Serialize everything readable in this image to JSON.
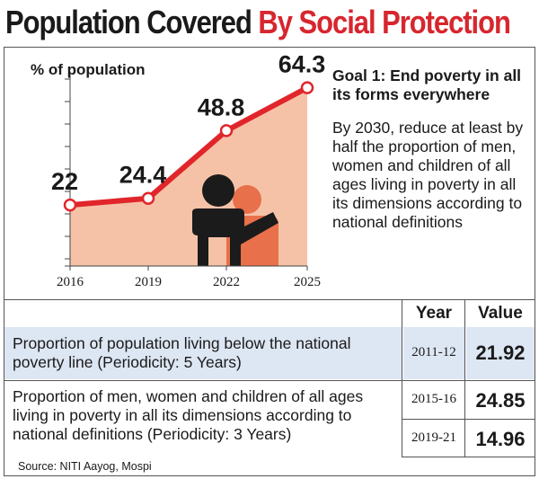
{
  "title": {
    "part1": "Population Covered",
    "part2": "By Social Protection"
  },
  "chart_data": {
    "type": "area",
    "ylabel": "% of population",
    "categories": [
      "2016",
      "2019",
      "2022",
      "2025"
    ],
    "values": [
      22,
      24.4,
      48.8,
      64.3
    ],
    "value_labels": [
      "22",
      "24.4",
      "48.8",
      "64.3"
    ],
    "ylim": [
      0,
      70
    ],
    "grid": false,
    "colors": {
      "line": "#e0262b",
      "fill": "#f6c2a7",
      "marker_fill": "#ffffff"
    }
  },
  "goal": {
    "title": "Goal 1: End poverty in all its forms everywhere",
    "body": "By 2030, reduce at least by half the proportion of men, women and children of all ages living in poverty in all its dimensions according to national definitions"
  },
  "table": {
    "headers": {
      "year": "Year",
      "value": "Value"
    },
    "rows": [
      {
        "indicator": "Proportion of population living below the national poverty line (Periodicity: 5 Years)",
        "entries": [
          {
            "year": "2011-12",
            "value": "21.92"
          }
        ]
      },
      {
        "indicator": "Proportion of men, women and children of all ages living in poverty in all its dimensions according to national definitions (Periodicity: 3 Years)",
        "entries": [
          {
            "year": "2015-16",
            "value": "24.85"
          },
          {
            "year": "2019-21",
            "value": "14.96"
          }
        ]
      }
    ]
  },
  "source": "Source: NITI Aayog, Mospi",
  "colors": {
    "accent": "#d7262e",
    "row_highlight": "#dde6f3",
    "figure_dark": "#1b1b1b",
    "figure_orange": "#e8704a"
  }
}
